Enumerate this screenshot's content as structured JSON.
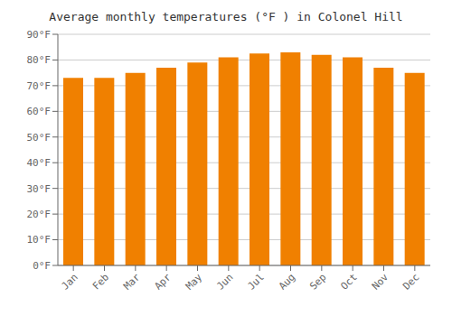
{
  "chart_data": {
    "type": "bar",
    "title": "Average monthly temperatures (°F ) in Colonel Hill",
    "categories": [
      "Jan",
      "Feb",
      "Mar",
      "Apr",
      "May",
      "Jun",
      "Jul",
      "Aug",
      "Sep",
      "Oct",
      "Nov",
      "Dec"
    ],
    "values": [
      73,
      73,
      75,
      77,
      79,
      81,
      82.5,
      83,
      82,
      81,
      77,
      75
    ],
    "color": "#F08000",
    "ylim": [
      0,
      90
    ],
    "yticks": [
      {
        "value": 0,
        "label": "0°F"
      },
      {
        "value": 10,
        "label": "10°F"
      },
      {
        "value": 20,
        "label": "20°F"
      },
      {
        "value": 30,
        "label": "30°F"
      },
      {
        "value": 40,
        "label": "40°F"
      },
      {
        "value": 50,
        "label": "50°F"
      },
      {
        "value": 60,
        "label": "60°F"
      },
      {
        "value": 70,
        "label": "70°F"
      },
      {
        "value": 80,
        "label": "80°F"
      },
      {
        "value": 90,
        "label": "90°F"
      }
    ],
    "grid": true
  }
}
